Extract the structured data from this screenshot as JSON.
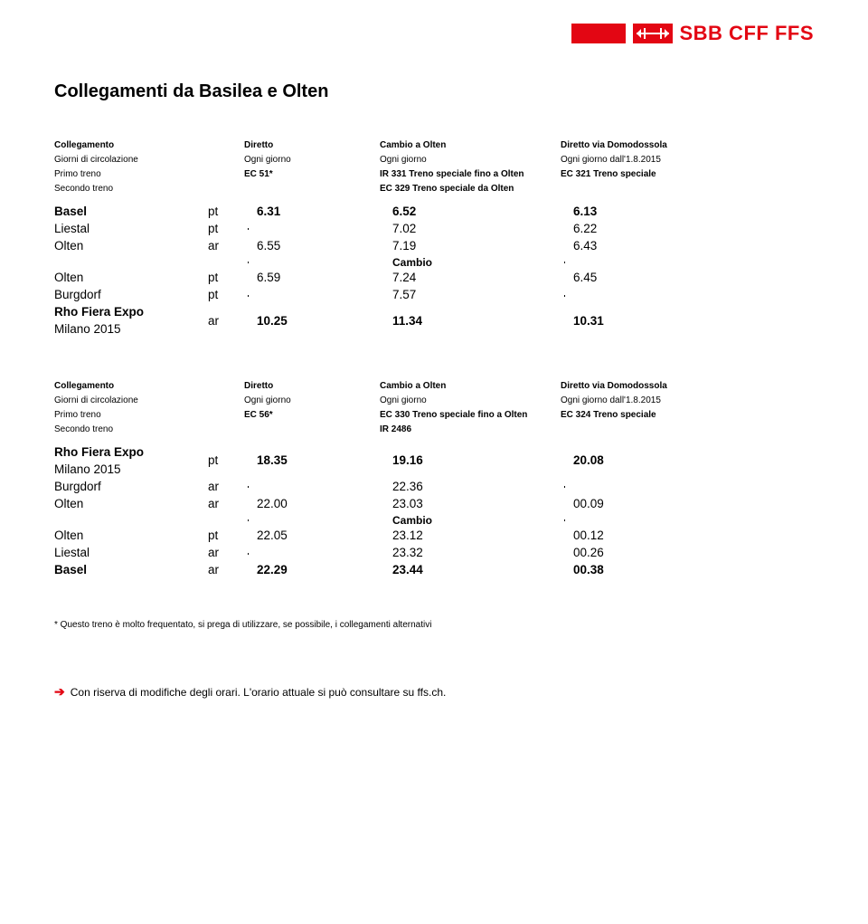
{
  "brand": {
    "text": "SBB CFF FFS"
  },
  "title": "Collegamenti da Basilea e Olten",
  "table1": {
    "header": {
      "r1c1": "Collegamento",
      "r1c3": "Diretto",
      "r1c4": "Cambio a Olten",
      "r1c5": "Diretto via Domodossola",
      "r2c1": "Giorni di circolazione",
      "r2c3": "Ogni giorno",
      "r2c4": "Ogni giorno",
      "r2c5": "Ogni giorno dall'1.8.2015",
      "r3c1": "Primo treno",
      "r3c3": "EC 51*",
      "r3c4": "IR 331 Treno speciale fino a Olten",
      "r3c5": "EC 321 Treno speciale",
      "r4c1": "Secondo treno",
      "r4c4": "EC 329 Treno speciale da Olten"
    },
    "rows": [
      {
        "station": "Basel",
        "ptar": "pt",
        "c3": "6.31",
        "c4": "6.52",
        "c5": "6.13",
        "bold": true
      },
      {
        "station": "Liestal",
        "ptar": "pt",
        "c3": "",
        "c4": "7.02",
        "c5": "6.22"
      },
      {
        "station": "Olten",
        "ptar": "ar",
        "c3": "6.55",
        "c4": "7.19",
        "c5": "6.43"
      },
      {
        "cambio": true,
        "c4": "Cambio"
      },
      {
        "station": "Olten",
        "ptar": "pt",
        "c3": "6.59",
        "c4": "7.24",
        "c5": "6.45"
      },
      {
        "station": "Burgdorf",
        "ptar": "pt",
        "c3": "",
        "c4": "7.57",
        "c5": ""
      },
      {
        "station": "Rho Fiera Expo Milano 2015",
        "ptar": "ar",
        "c3": "10.25",
        "c4": "11.34",
        "c5": "10.31",
        "bold": true
      }
    ]
  },
  "table2": {
    "header": {
      "r1c1": "Collegamento",
      "r1c3": "Diretto",
      "r1c4": "Cambio a Olten",
      "r1c5": "Diretto via Domodossola",
      "r2c1": "Giorni di circolazione",
      "r2c3": "Ogni giorno",
      "r2c4": "Ogni giorno",
      "r2c5": "Ogni giorno dall'1.8.2015",
      "r3c1": "Primo treno",
      "r3c3": "EC 56*",
      "r3c4": "EC 330 Treno speciale fino a Olten",
      "r3c5": "EC 324 Treno speciale",
      "r4c1": "Secondo treno",
      "r4c4": "IR 2486"
    },
    "rows": [
      {
        "station": "Rho Fiera Expo Milano 2015",
        "ptar": "pt",
        "c3": "18.35",
        "c4": "19.16",
        "c5": "20.08",
        "bold": true
      },
      {
        "station": "Burgdorf",
        "ptar": "ar",
        "c3": "",
        "c4": "22.36",
        "c5": ""
      },
      {
        "station": "Olten",
        "ptar": "ar",
        "c3": "22.00",
        "c4": "23.03",
        "c5": "00.09"
      },
      {
        "cambio": true,
        "c4": "Cambio"
      },
      {
        "station": "Olten",
        "ptar": "pt",
        "c3": "22.05",
        "c4": "23.12",
        "c5": "00.12"
      },
      {
        "station": "Liestal",
        "ptar": "ar",
        "c3": "",
        "c4": "23.32",
        "c5": "00.26"
      },
      {
        "station": "Basel",
        "ptar": "ar",
        "c3": "22.29",
        "c4": "23.44",
        "c5": "00.38",
        "bold": true
      }
    ]
  },
  "footnote": "* Questo treno è molto frequentato, si prega di utilizzare, se possibile, i collegamenti alternativi",
  "footer": "Con riserva di modifiche degli orari. L'orario attuale si può consultare su ffs.ch."
}
